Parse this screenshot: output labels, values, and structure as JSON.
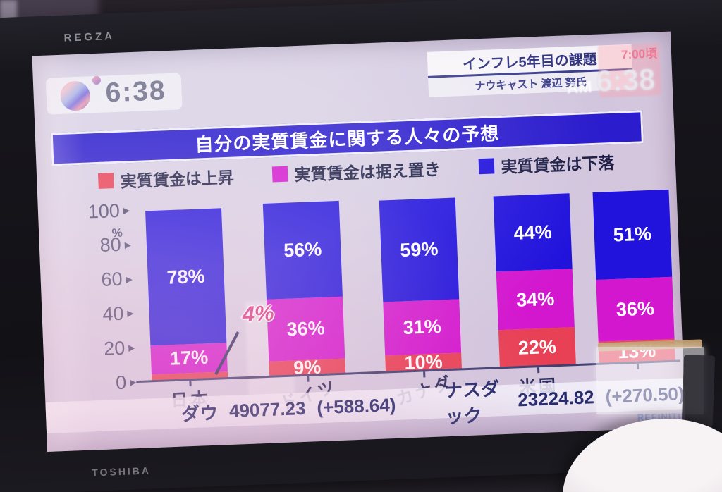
{
  "tv": {
    "brand_top": "REGZA",
    "brand_bottom": "TOSHIBA"
  },
  "broadcast": {
    "clock": {
      "time": "6:38"
    },
    "headline": {
      "title": "インフレ5年目の課題",
      "subtitle": "ナウキャスト 渡辺 努氏"
    },
    "ghost_clock": {
      "meridiem": "AM",
      "time": "6:38",
      "ghost_text": "7:00頃"
    },
    "ticker": {
      "items": [
        {
          "name": "ダウ",
          "value": "49077.23",
          "change": "(+588.64)"
        },
        {
          "name": "ナスダック",
          "value": "23224.82",
          "change": "(+270.50)"
        }
      ],
      "watermark": "REFINITIV"
    }
  },
  "chart_data": {
    "type": "bar",
    "stacked": true,
    "title": "自分の実質賃金に関する人々の予想",
    "categories": [
      "日本",
      "ドイツ",
      "カナダ",
      "米国",
      ""
    ],
    "series": [
      {
        "name": "実質賃金は上昇",
        "color": "#e84055",
        "values": [
          4,
          9,
          10,
          22,
          13
        ]
      },
      {
        "name": "実質賃金は据え置き",
        "color": "#d317cf",
        "values": [
          17,
          36,
          31,
          34,
          36
        ]
      },
      {
        "name": "実質賃金は下落",
        "color": "#2112dc",
        "values": [
          78,
          56,
          59,
          44,
          51
        ]
      }
    ],
    "ylabel": "%",
    "yticks": [
      0,
      20,
      40,
      60,
      80,
      100
    ],
    "ylim": [
      0,
      100
    ],
    "legend_position": "top",
    "grid": false,
    "value_suffix": "%",
    "annotations": [
      {
        "text": "4%",
        "target_category": "日本",
        "target_series": "実質賃金は上昇"
      }
    ]
  }
}
